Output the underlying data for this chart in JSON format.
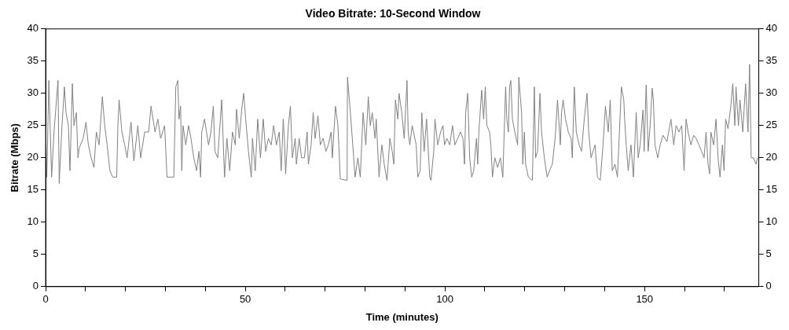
{
  "chart_data": {
    "type": "line",
    "title": "Video Bitrate: 10-Second Window",
    "xlabel": "Time (minutes)",
    "ylabel": "Bitrate (Mbps)",
    "x": [
      0,
      0.3,
      0.8,
      1.5,
      2.1,
      3.1,
      3.4,
      4.1,
      4.7,
      5.1,
      5.7,
      6.1,
      6.7,
      7.1,
      7.7,
      8.1,
      8.4,
      9.4,
      10.1,
      10.7,
      11.4,
      12.1,
      12.7,
      13.4,
      14.2,
      14.8,
      15.4,
      16.1,
      16.8,
      17.8,
      18.1,
      18.4,
      19.1,
      19.8,
      20.4,
      21.4,
      22.1,
      23.1,
      23.8,
      24.8,
      25.8,
      26.4,
      27.4,
      28.1,
      28.8,
      29.8,
      30.1,
      30.4,
      31.4,
      32.1,
      32.6,
      33.1,
      33.4,
      33.8,
      34.1,
      34.4,
      35.1,
      35.8,
      36.4,
      37.1,
      37.8,
      38.4,
      38.8,
      39.1,
      39.8,
      40.8,
      41.4,
      42,
      42.4,
      43.1,
      44.1,
      44.8,
      45.4,
      46.1,
      46.8,
      47.5,
      47.8,
      48.5,
      49.1,
      49.6,
      50.1,
      50.8,
      51.5,
      51.8,
      52.5,
      53.1,
      53.8,
      54.5,
      55.1,
      55.8,
      56.5,
      57.1,
      57.8,
      58.5,
      59,
      59.5,
      59.8,
      60.1,
      60.8,
      61.3,
      61.8,
      62.5,
      62.8,
      63.5,
      64.1,
      64.8,
      65.5,
      65.8,
      66.5,
      67,
      67.5,
      68.2,
      68.8,
      69.5,
      70.2,
      70.8,
      71.5,
      71.8,
      72.6,
      73.2,
      73.8,
      75.5,
      75.6,
      76.2,
      76.8,
      77.5,
      78.2,
      78.8,
      79.5,
      80.2,
      80.8,
      81.3,
      81.8,
      82.5,
      82.8,
      83.5,
      84.2,
      84.8,
      85.5,
      86.2,
      86.8,
      87.2,
      87.6,
      88.2,
      88.5,
      89.2,
      89.8,
      90.5,
      90.8,
      91.2,
      91.8,
      92.8,
      93.2,
      93.8,
      94.2,
      94.8,
      95.4,
      96.2,
      96.5,
      97.2,
      97.5,
      98.2,
      98.9,
      99.5,
      99.9,
      100.5,
      101.2,
      101.9,
      102.5,
      103.2,
      103.9,
      104.5,
      104.9,
      105.2,
      105.7,
      106.2,
      106.7,
      107.2,
      107.9,
      108.2,
      108.5,
      109.2,
      109.7,
      110.1,
      110.5,
      111.2,
      111.5,
      111.9,
      112.5,
      113.2,
      113.9,
      114.5,
      115.2,
      115.5,
      115.9,
      116.2,
      116.5,
      116.9,
      117.5,
      118.2,
      118.5,
      119.2,
      119.5,
      119.9,
      120.2,
      120.9,
      121.9,
      122.4,
      122.7,
      123.2,
      123.8,
      124.2,
      124.9,
      125.6,
      126.2,
      126.9,
      127.6,
      128.2,
      128.9,
      129.2,
      129.6,
      130.2,
      130.9,
      131.6,
      131.9,
      132.4,
      132.9,
      133.6,
      134.2,
      134.9,
      135.6,
      136,
      136.6,
      137.6,
      138.2,
      138.9,
      139.6,
      140.2,
      140.9,
      141.4,
      141.9,
      142.6,
      143.2,
      144.2,
      144.8,
      145,
      145.4,
      145.9,
      146.6,
      147.2,
      147.9,
      148.4,
      148.9,
      149.6,
      149.9,
      150.4,
      150.9,
      151.4,
      151.9,
      152.2,
      152.6,
      153.3,
      153.9,
      154.6,
      155.6,
      156.6,
      157.3,
      157.9,
      158.6,
      159.3,
      159.9,
      160.4,
      160.9,
      161.6,
      162.3,
      162.9,
      163.6,
      164.3,
      164.9,
      165.4,
      165.9,
      166.3,
      166.6,
      167.3,
      167.9,
      168.4,
      168.9,
      169.5,
      169.9,
      170.3,
      170.9,
      171.6,
      172.1,
      172.6,
      172.9,
      173.5,
      173.9,
      174.6,
      175.3,
      175.9,
      176.3,
      176.7,
      177.3,
      177.9,
      178.3
    ],
    "values": [
      25,
      17,
      32,
      17,
      24,
      32,
      16,
      25,
      31,
      27,
      25,
      18,
      31.5,
      25,
      27,
      20,
      21.5,
      23,
      25.5,
      22,
      20,
      18.5,
      24,
      22,
      29.5,
      25,
      22,
      18,
      17,
      17,
      25,
      29,
      24,
      22,
      20,
      25.5,
      19.5,
      25,
      20,
      24,
      24,
      28,
      24,
      26,
      23,
      25,
      21,
      17,
      17,
      17,
      31,
      32,
      26,
      28,
      18,
      25,
      22,
      25,
      23,
      20,
      18,
      21,
      17,
      24,
      26,
      22,
      24,
      28,
      21,
      20,
      29,
      17,
      23,
      18,
      24,
      22,
      27.5,
      23,
      27.5,
      30,
      26,
      21,
      17,
      23,
      18,
      26,
      20,
      26,
      21,
      23,
      22,
      25,
      22,
      24,
      18,
      26,
      23,
      17.5,
      25,
      28,
      20,
      23,
      19,
      23,
      20,
      20,
      24,
      19,
      22,
      27,
      23,
      26.5,
      22,
      23,
      21,
      22,
      24,
      20,
      28,
      25,
      16.7,
      16.5,
      32.5,
      28,
      23,
      17,
      20,
      17,
      27,
      22,
      29.5,
      25,
      27,
      23,
      26,
      17,
      22,
      19,
      16.5,
      23,
      21,
      19,
      29,
      26,
      30,
      27,
      23,
      32,
      24,
      22,
      25,
      22,
      17,
      18,
      27,
      21,
      26,
      17,
      16.5,
      21,
      26,
      22,
      24,
      25,
      22,
      23,
      22,
      25,
      22,
      23,
      24,
      23,
      19,
      27,
      30,
      20,
      17,
      18,
      23,
      19,
      24,
      30.5,
      26,
      31,
      25,
      24,
      22,
      17,
      20,
      18.5,
      20,
      17,
      31,
      26,
      24,
      31,
      32,
      26,
      24,
      22,
      32.5,
      27,
      19,
      24,
      19,
      17,
      16.5,
      31,
      20,
      21,
      30,
      24,
      20,
      17,
      18,
      19,
      23,
      29,
      22,
      27,
      29,
      26,
      24,
      23,
      20,
      31,
      24,
      22,
      21,
      26,
      30,
      24,
      20,
      22,
      17,
      16.5,
      22,
      28,
      24,
      29,
      18,
      19,
      17,
      31,
      29,
      26,
      22,
      18,
      22,
      17,
      27,
      20,
      22,
      27.4,
      21,
      31.3,
      21,
      25,
      30.8,
      29,
      22,
      20,
      22,
      23.5,
      22.5,
      26,
      22,
      25,
      24,
      25,
      18,
      26,
      24,
      22,
      23.5,
      23,
      22,
      21,
      20,
      24,
      19,
      17.5,
      24,
      22,
      26,
      20,
      17,
      22,
      18,
      26,
      24.5,
      28,
      31.5,
      25,
      31,
      25,
      29,
      24,
      31.5,
      24,
      34.5,
      20,
      20,
      19,
      20
    ],
    "color": "#808080",
    "marker": "none",
    "line_style": "solid",
    "legend": false,
    "grid": false,
    "xlim": [
      0,
      178.6
    ],
    "xticks": [
      0,
      {
        "value": 10,
        "label": null
      },
      {
        "value": 20,
        "label": null
      },
      {
        "value": 30,
        "label": null
      },
      {
        "value": 40,
        "label": null
      },
      50,
      {
        "value": 60,
        "label": null
      },
      {
        "value": 70,
        "label": null
      },
      {
        "value": 80,
        "label": null
      },
      {
        "value": 90,
        "label": null
      },
      100,
      {
        "value": 110,
        "label": null
      },
      {
        "value": 120,
        "label": null
      },
      {
        "value": 130,
        "label": null
      },
      {
        "value": 140,
        "label": null
      },
      150,
      {
        "value": 160,
        "label": null
      },
      {
        "value": 170,
        "label": null
      }
    ],
    "ylim": [
      0,
      40
    ],
    "yticks": [
      0,
      5,
      10,
      15,
      20,
      25,
      30,
      35,
      40
    ],
    "y2lim": [
      0,
      40
    ],
    "y2ticks": [
      0,
      5,
      10,
      15,
      20,
      25,
      30,
      35,
      40
    ]
  }
}
